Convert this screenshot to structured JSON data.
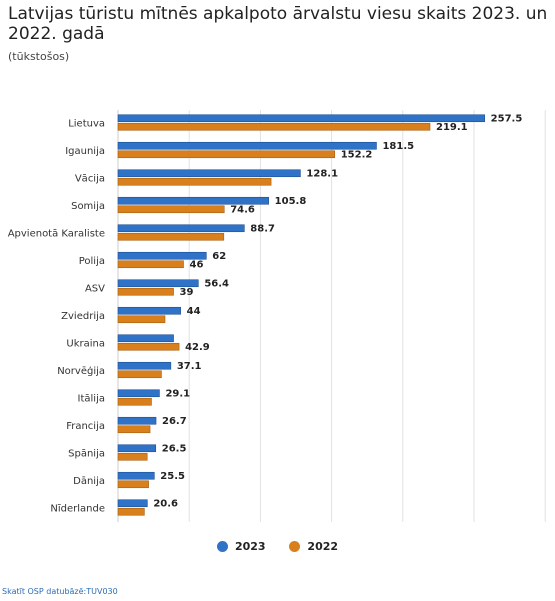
{
  "title": "Latvijas tūristu mītnēs apkalpoto ārvalstu viesu skaits 2023. un 2022. gadā",
  "subtitle": "(tūkstošos)",
  "source": "Skatīt OSP datubāzē:TUV030",
  "colors": {
    "s2023": "#2f73c8",
    "s2022": "#d9801c",
    "grid": "#e2e2e2",
    "axis": "#cccccc"
  },
  "chart_data": {
    "type": "bar",
    "orientation": "horizontal",
    "title": "Latvijas tūristu mītnēs apkalpoto ārvalstu viesu skaits 2023. un 2022. gadā",
    "subtitle": "(tūkstošos)",
    "categories": [
      "Lietuva",
      "Igaunija",
      "Vācija",
      "Somija",
      "Apvienotā Karaliste",
      "Polija",
      "ASV",
      "Zviedrija",
      "Ukraina",
      "Norvēģija",
      "Itālija",
      "Francija",
      "Spānija",
      "Dānija",
      "Nīderlande"
    ],
    "series": [
      {
        "name": "2023",
        "values": [
          257.5,
          181.5,
          128.1,
          105.8,
          88.7,
          62,
          56.4,
          44,
          39,
          37.1,
          29.1,
          26.7,
          26.5,
          25.5,
          20.6
        ],
        "labels": [
          "257.5",
          "181.5",
          "128.1",
          "105.8",
          "88.7",
          "62",
          "56.4",
          "44",
          "",
          "37.1",
          "29.1",
          "26.7",
          "26.5",
          "25.5",
          "20.6"
        ]
      },
      {
        "name": "2022",
        "values": [
          219.1,
          152.2,
          107.5,
          74.6,
          74.3,
          46,
          39,
          33,
          42.9,
          30.5,
          23.5,
          22.5,
          20.5,
          21.5,
          18.5
        ],
        "labels": [
          "219.1",
          "152.2",
          "",
          "74.6",
          "",
          "46",
          "39",
          "",
          "42.9",
          "",
          "",
          "",
          "",
          "",
          ""
        ]
      }
    ],
    "xlim": [
      0,
      300
    ],
    "grid": true,
    "legend_position": "bottom"
  }
}
